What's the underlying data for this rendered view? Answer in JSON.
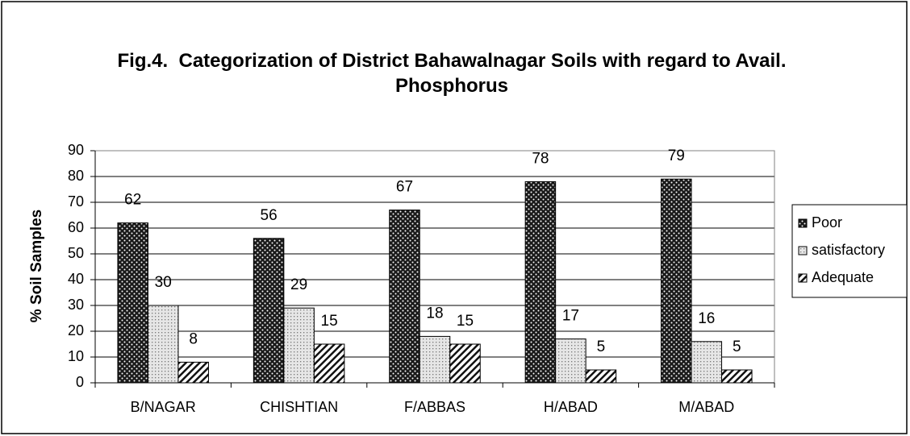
{
  "chart_data": {
    "type": "bar",
    "title": "Fig.4.  Categorization of District Bahawalnagar Soils with regard to Avail. Phosphorus",
    "y_label": "% Soil Samples",
    "categories": [
      "B/NAGAR",
      "CHISHTIAN",
      "F/ABBAS",
      "H/ABAD",
      "M/ABAD"
    ],
    "series": [
      {
        "name": "Poor",
        "color": "#1a1a1a",
        "values": [
          62,
          56,
          67,
          78,
          79
        ]
      },
      {
        "name": "satisfactory",
        "color": "#e6e6e6",
        "values": [
          30,
          29,
          18,
          17,
          16
        ]
      },
      {
        "name": "Adequate",
        "color": "#ffffff",
        "values": [
          8,
          15,
          15,
          5,
          5
        ]
      }
    ],
    "ylim": [
      0,
      90
    ],
    "yticks": [
      0,
      10,
      20,
      30,
      40,
      50,
      60,
      70,
      80,
      90
    ],
    "grid": true,
    "legend": "right"
  }
}
